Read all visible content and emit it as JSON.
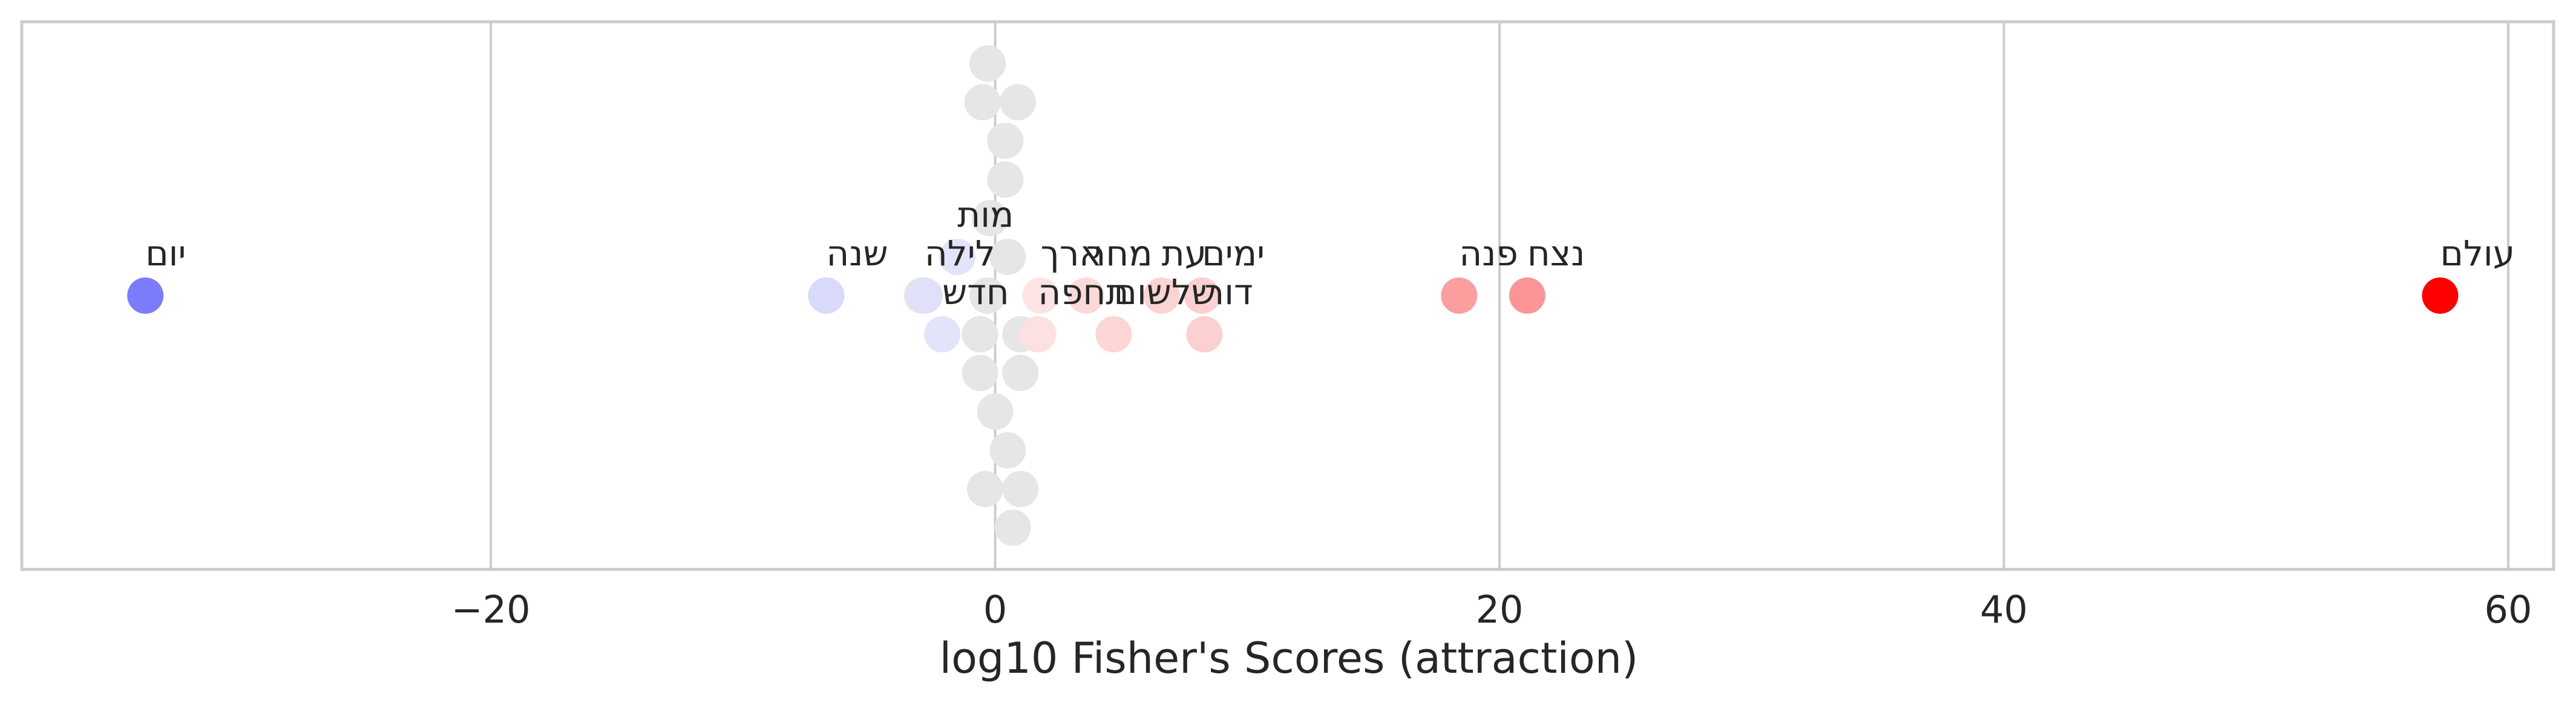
{
  "chart_data": {
    "type": "scatter",
    "title": "",
    "xlabel": "log10 Fisher's Scores (attraction)",
    "ylabel": "",
    "xlim": [
      -38.6,
      61.8
    ],
    "xticks": [
      -20,
      0,
      20,
      40,
      60
    ],
    "xtick_labels": [
      "−20",
      "0",
      "20",
      "40",
      "60"
    ],
    "grid": true,
    "labeled_points": [
      {
        "label": "יום",
        "x": -33.7,
        "color": "#7b7bfb"
      },
      {
        "label": "שנה",
        "x": -6.7,
        "color": "#d9d9fa"
      },
      {
        "label": "לילה",
        "x": -2.8,
        "color": "#e0e0fa"
      },
      {
        "label": "חדש",
        "x": -2.1,
        "color": "#e3e3fa"
      },
      {
        "label": "מות",
        "x": -1.5,
        "color": "#e3e3fa"
      },
      {
        "label": "ארך",
        "x": 1.8,
        "color": "#fde3e3"
      },
      {
        "label": "תחפה",
        "x": 1.7,
        "color": "#fde0e0"
      },
      {
        "label": "מחר",
        "x": 3.6,
        "color": "#fcd9d9"
      },
      {
        "label": "שלשום",
        "x": 4.7,
        "color": "#fcd5d5"
      },
      {
        "label": "עת",
        "x": 6.6,
        "color": "#fcd3d3"
      },
      {
        "label": "ימים",
        "x": 8.2,
        "color": "#fcd0d0"
      },
      {
        "label": "דור",
        "x": 8.3,
        "color": "#fcd0d0"
      },
      {
        "label": "פנה",
        "x": 18.4,
        "color": "#fb9e9e"
      },
      {
        "label": "נצח",
        "x": 21.1,
        "color": "#fb9595"
      },
      {
        "label": "עולם",
        "x": 57.3,
        "color": "#ff0000"
      }
    ],
    "background_points": {
      "color": "#e6e6e6",
      "x": [
        -0.3,
        0.5,
        1.0,
        -0.2,
        -0.6,
        1.0,
        0.4,
        0.0,
        0.4,
        -2.9,
        0.5,
        -0.6,
        0.9,
        -0.4,
        -0.5,
        -0.3,
        0.7,
        1.0
      ]
    }
  }
}
